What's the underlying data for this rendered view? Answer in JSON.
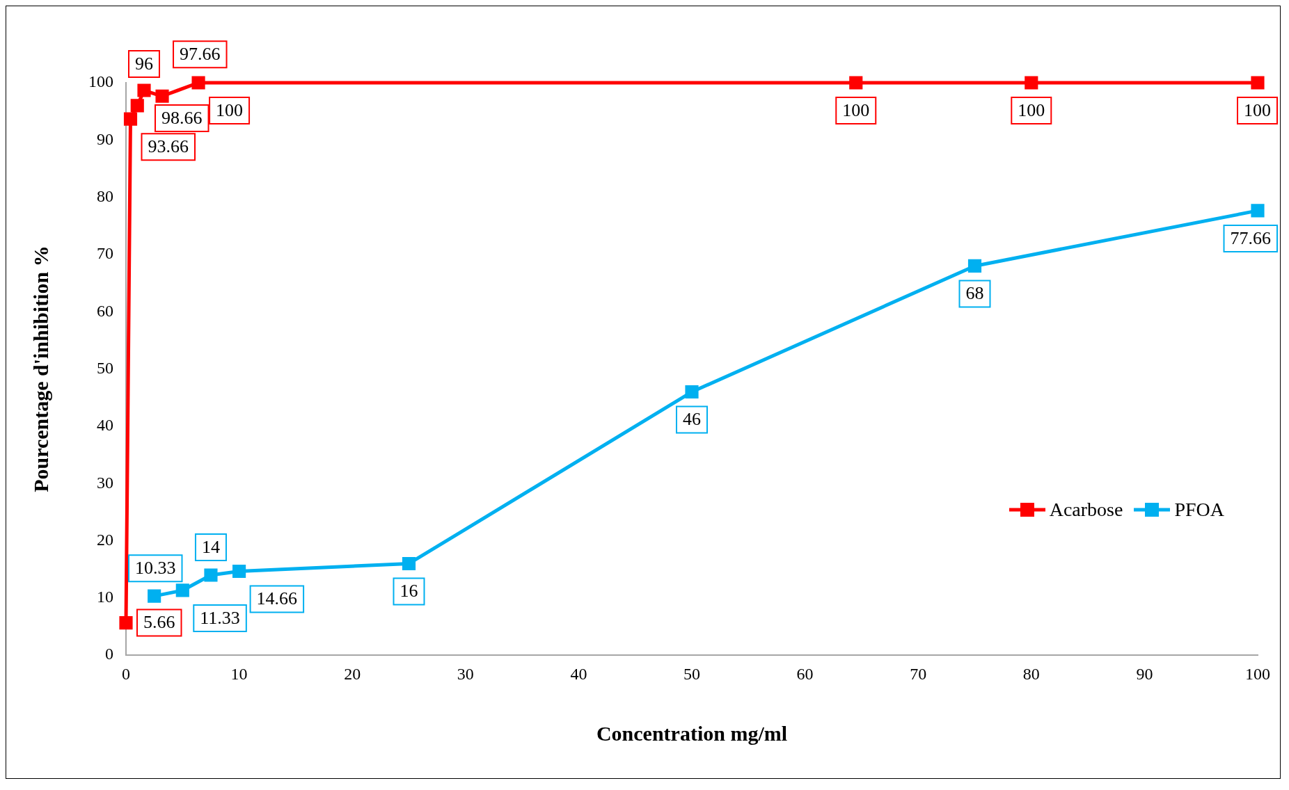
{
  "chart_data": {
    "type": "line",
    "xlabel": "Concentration mg/ml",
    "ylabel": "Pourcentage d'inhibition %",
    "series": [
      {
        "name": "Acarbose",
        "color": "#ff0000",
        "x": [
          0,
          0.4,
          1,
          1.6,
          3.2,
          6.4,
          64.5,
          80,
          100
        ],
        "values": [
          5.66,
          93.66,
          96,
          98.66,
          97.66,
          100,
          100,
          100,
          100
        ]
      },
      {
        "name": "PFOA",
        "color": "#00b0f0",
        "x": [
          2.5,
          5,
          7.5,
          10,
          25,
          50,
          75,
          100
        ],
        "values": [
          10.33,
          11.33,
          14,
          14.66,
          16,
          46,
          68,
          77.66
        ]
      }
    ],
    "xlim": [
      0,
      100
    ],
    "xticks": [
      0,
      10,
      20,
      30,
      40,
      50,
      60,
      70,
      80,
      90,
      100
    ],
    "ylim": [
      0,
      100
    ],
    "yticks": [
      0,
      10,
      20,
      30,
      40,
      50,
      60,
      70,
      80,
      90,
      100
    ],
    "grid": false,
    "legend": "bottom right",
    "marker": "square",
    "line_style": "solid",
    "data_labels": true
  }
}
